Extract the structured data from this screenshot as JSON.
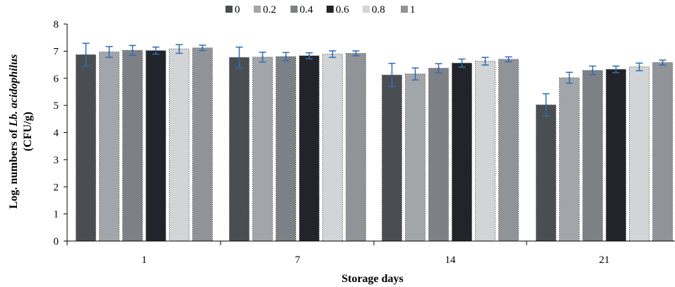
{
  "chart_data": {
    "type": "bar",
    "title": "",
    "xlabel": "Storage days",
    "ylabel_parts": [
      "Log. numbers of ",
      "Lb. acidophilus"
    ],
    "ylabel_unit": "(CFU/g)",
    "categories": [
      "1",
      "7",
      "14",
      "21"
    ],
    "ylim": [
      0,
      8
    ],
    "yticks": [
      "0",
      "1",
      "2",
      "3",
      "4",
      "5",
      "6",
      "7",
      "8"
    ],
    "legend_position": "top",
    "series": [
      {
        "name": "0",
        "color": "#4a4d52",
        "values": [
          6.87,
          6.77,
          6.12,
          5.02
        ],
        "errors": [
          0.42,
          0.38,
          0.43,
          0.41
        ]
      },
      {
        "name": "0.2",
        "color": "#a2a5a9",
        "values": [
          6.97,
          6.78,
          6.16,
          6.02
        ],
        "errors": [
          0.2,
          0.18,
          0.22,
          0.2
        ]
      },
      {
        "name": "0.4",
        "color": "#7d8085",
        "values": [
          7.03,
          6.8,
          6.37,
          6.29
        ],
        "errors": [
          0.18,
          0.15,
          0.17,
          0.16
        ]
      },
      {
        "name": "0.6",
        "color": "#22242a",
        "values": [
          7.02,
          6.83,
          6.56,
          6.33
        ],
        "errors": [
          0.13,
          0.11,
          0.15,
          0.12
        ]
      },
      {
        "name": "0.8",
        "color": "#d2d4d6",
        "values": [
          7.08,
          6.89,
          6.63,
          6.42
        ],
        "errors": [
          0.16,
          0.12,
          0.14,
          0.14
        ]
      },
      {
        "name": "1",
        "color": "#909398",
        "values": [
          7.12,
          6.92,
          6.7,
          6.58
        ],
        "errors": [
          0.1,
          0.09,
          0.09,
          0.09
        ]
      }
    ]
  }
}
